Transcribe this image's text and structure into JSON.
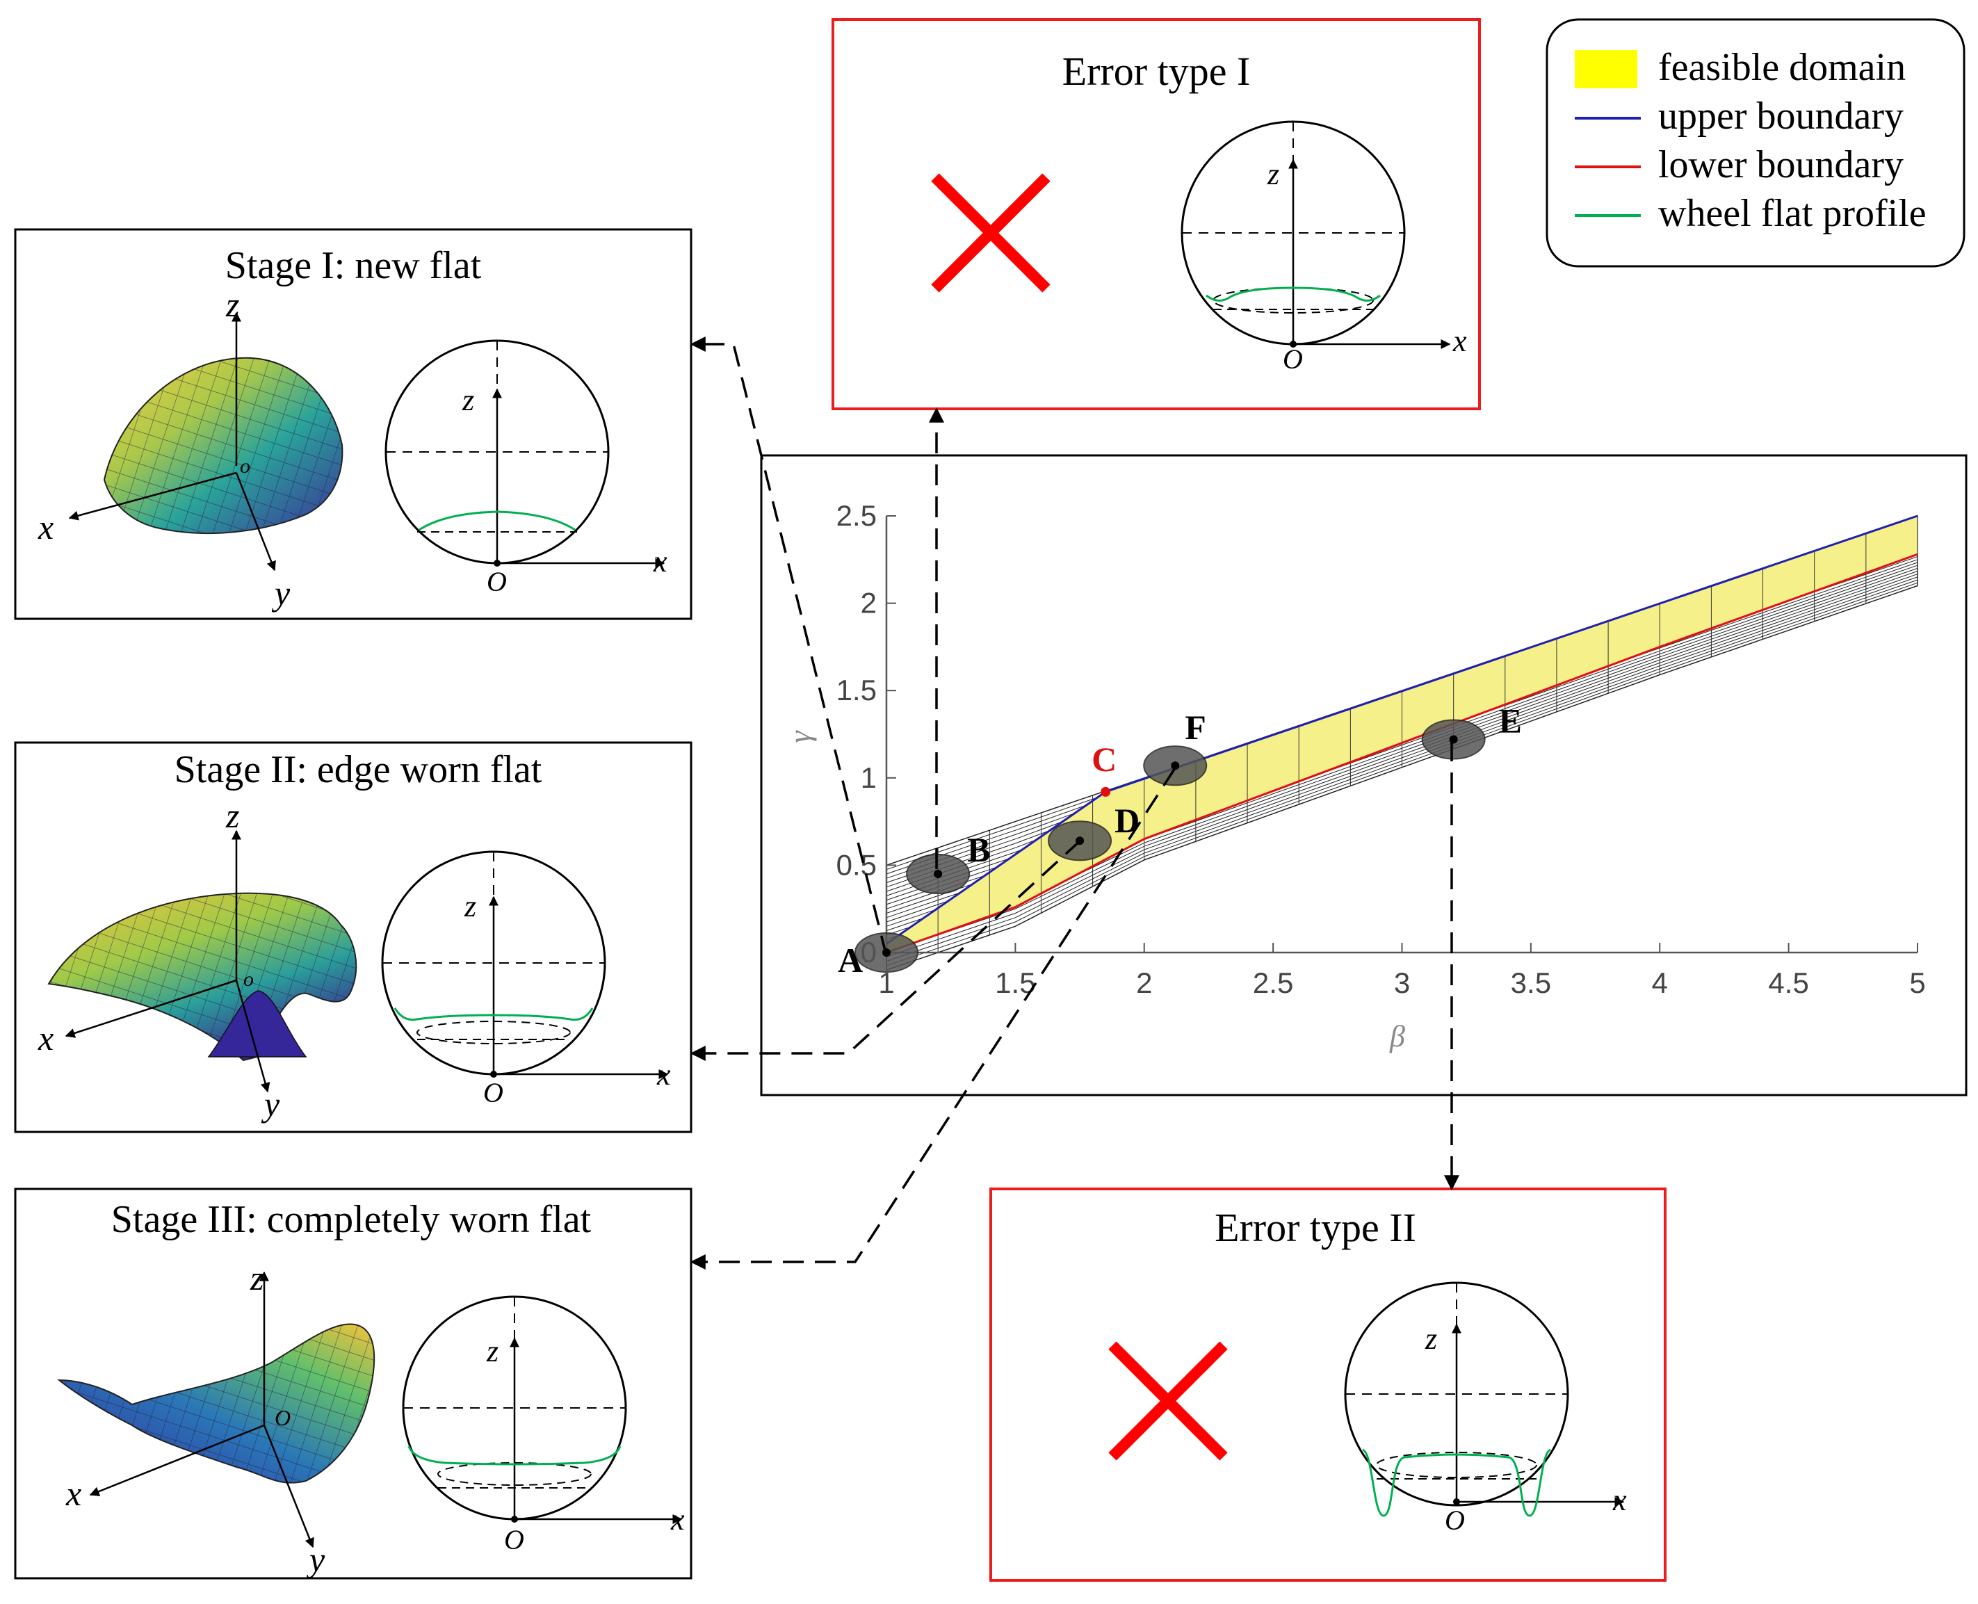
{
  "legend": {
    "items": [
      {
        "label": "feasible domain",
        "swatch": "fill",
        "color": "#ffff00"
      },
      {
        "label": "upper boundary",
        "swatch": "line",
        "color": "#1f1fb4"
      },
      {
        "label": "lower boundary",
        "swatch": "line",
        "color": "#e01010"
      },
      {
        "label": "wheel flat profile",
        "swatch": "line",
        "color": "#00b050"
      }
    ]
  },
  "panels": {
    "stage1": {
      "title": "Stage I: new flat"
    },
    "stage2": {
      "title": "Stage II: edge worn flat"
    },
    "stage3": {
      "title": "Stage III: completely worn flat"
    },
    "error1": {
      "title": "Error type I"
    },
    "error2": {
      "title": "Error type II"
    }
  },
  "axis_symbols": {
    "x": "x",
    "y": "y",
    "z": "z",
    "origin": "O",
    "origin_surface": "o"
  },
  "chart_data": {
    "type": "area",
    "xlabel": "β",
    "ylabel": "γ",
    "xlim": [
      1,
      5
    ],
    "ylim": [
      0,
      2.5
    ],
    "x_ticks": [
      "1",
      "1.5",
      "2",
      "2.5",
      "3",
      "3.5",
      "4",
      "4.5",
      "5"
    ],
    "y_ticks": [
      "0",
      "0.5",
      "1",
      "1.5",
      "2",
      "2.5"
    ],
    "series": [
      {
        "name": "upper boundary",
        "x": [
          1,
          1.85,
          5
        ],
        "y": [
          0.05,
          0.92,
          2.5
        ]
      },
      {
        "name": "lower boundary",
        "x": [
          1,
          1.5,
          2,
          3,
          4,
          5
        ],
        "y": [
          0.0,
          0.26,
          0.65,
          1.2,
          1.75,
          2.28
        ]
      }
    ],
    "points": [
      {
        "label": "A",
        "x": 1.0,
        "y": 0.0,
        "color": "#000000"
      },
      {
        "label": "B",
        "x": 1.2,
        "y": 0.45,
        "color": "#000000"
      },
      {
        "label": "C",
        "x": 1.85,
        "y": 0.92,
        "color": "#e01010"
      },
      {
        "label": "D",
        "x": 1.75,
        "y": 0.64,
        "color": "#000000"
      },
      {
        "label": "E",
        "x": 3.2,
        "y": 1.22,
        "color": "#000000"
      },
      {
        "label": "F",
        "x": 2.12,
        "y": 1.07,
        "color": "#000000"
      }
    ],
    "grid": false
  },
  "colors": {
    "error_frame": "#ee1c1c",
    "cross": "#ff0000",
    "frame": "#000000",
    "flat_profile": "#00b050"
  }
}
